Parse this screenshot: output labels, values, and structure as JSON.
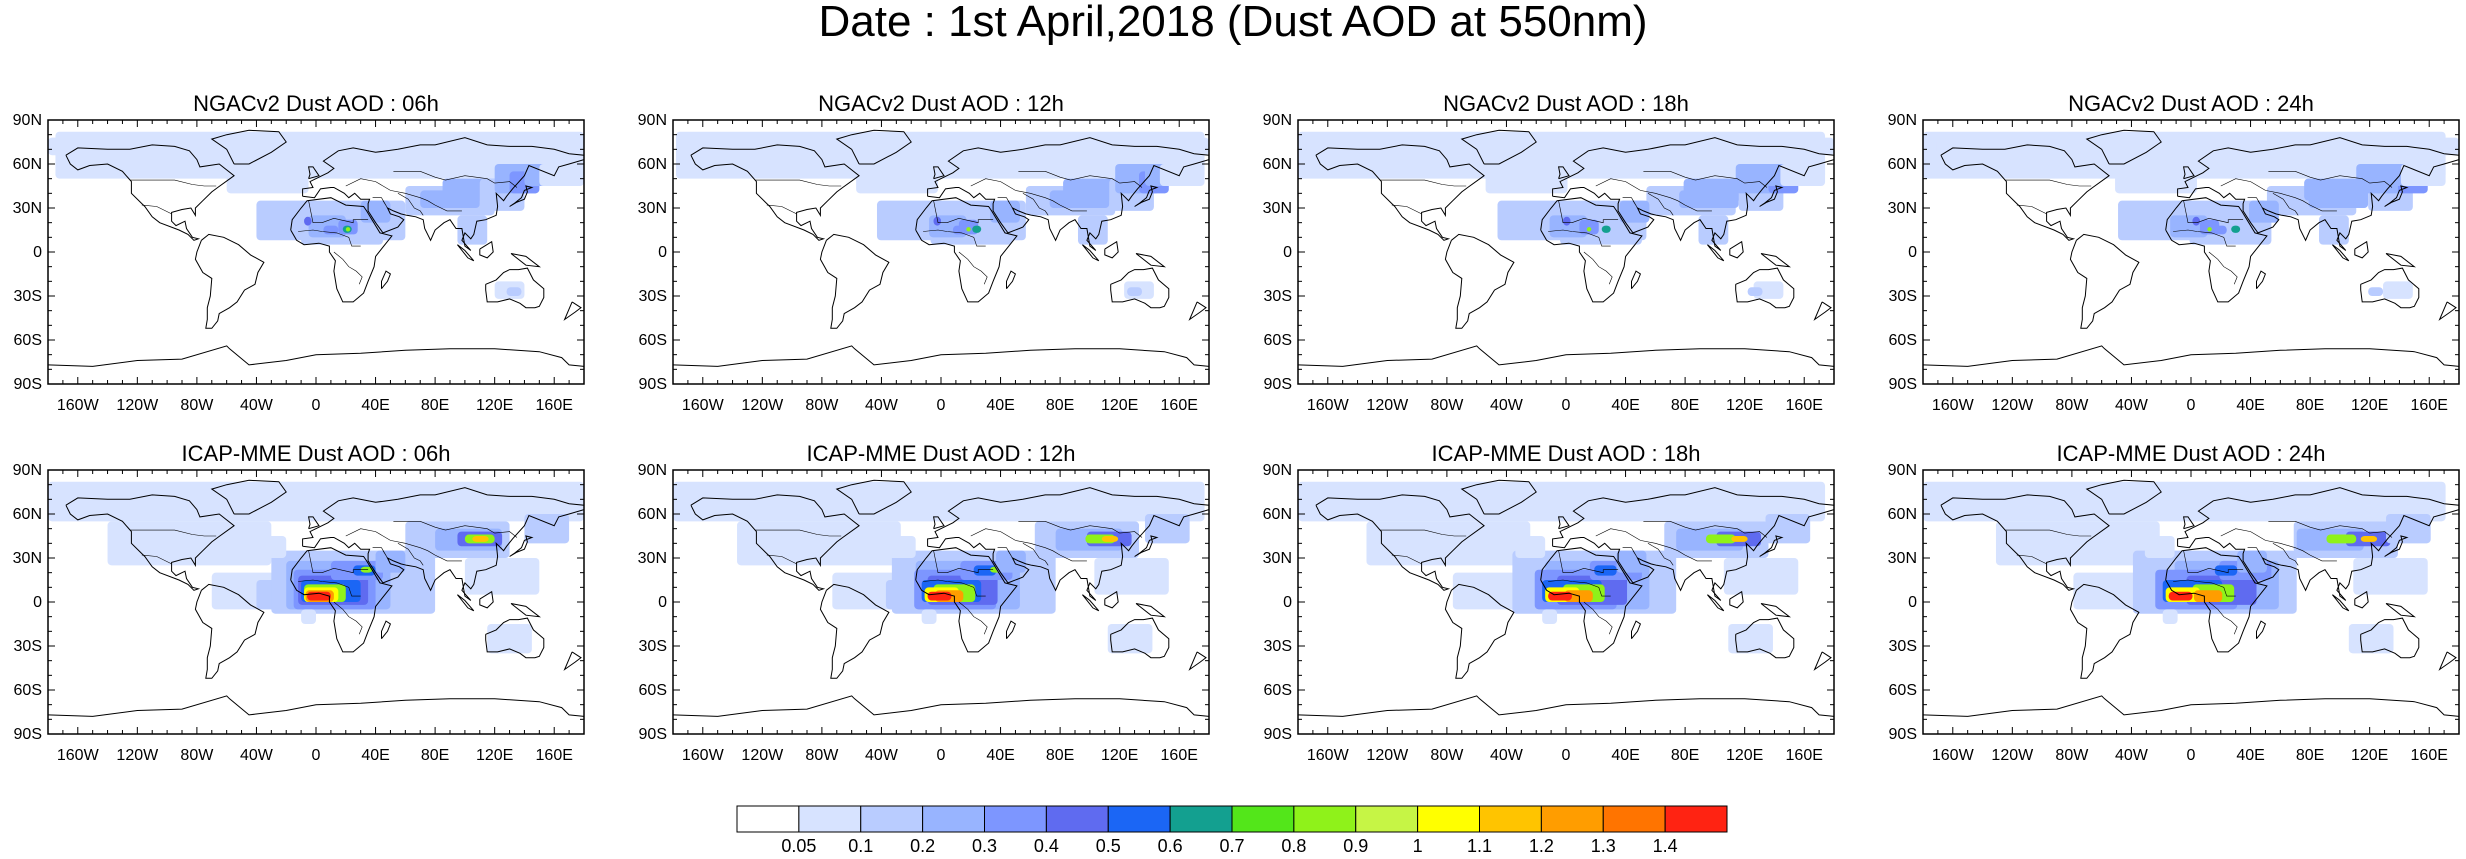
{
  "title": "Date : 1st April,2018 (Dust AOD at 550nm)",
  "panels": [
    {
      "title": "NGACv2 Dust AOD : 06h",
      "model": "NGACv2",
      "hour": "06h"
    },
    {
      "title": "NGACv2 Dust AOD : 12h",
      "model": "NGACv2",
      "hour": "12h"
    },
    {
      "title": "NGACv2 Dust AOD : 18h",
      "model": "NGACv2",
      "hour": "18h"
    },
    {
      "title": "NGACv2 Dust AOD : 24h",
      "model": "NGACv2",
      "hour": "24h"
    },
    {
      "title": "ICAP-MME Dust AOD : 06h",
      "model": "ICAP-MME",
      "hour": "06h"
    },
    {
      "title": "ICAP-MME Dust AOD : 12h",
      "model": "ICAP-MME",
      "hour": "12h"
    },
    {
      "title": "ICAP-MME Dust AOD : 18h",
      "model": "ICAP-MME",
      "hour": "18h"
    },
    {
      "title": "ICAP-MME Dust AOD : 24h",
      "model": "ICAP-MME",
      "hour": "24h"
    }
  ],
  "lat_labels": [
    "90N",
    "60N",
    "30N",
    "0",
    "30S",
    "60S",
    "90S"
  ],
  "lon_labels": [
    "160W",
    "120W",
    "80W",
    "40W",
    "0",
    "40E",
    "80E",
    "120E",
    "160E"
  ],
  "colorbar": {
    "labels": [
      "0.05",
      "0.1",
      "0.2",
      "0.3",
      "0.4",
      "0.5",
      "0.6",
      "0.7",
      "0.8",
      "0.9",
      "1",
      "1.1",
      "1.2",
      "1.3",
      "1.4"
    ],
    "colors": [
      "#ffffff",
      "#d7e3ff",
      "#b9ccff",
      "#98b4ff",
      "#7d96ff",
      "#5f6bf0",
      "#1b66f5",
      "#13a090",
      "#53e61a",
      "#8ff21a",
      "#c6f545",
      "#ffff00",
      "#ffc400",
      "#ff9d00",
      "#ff7400",
      "#ff2312"
    ]
  }
}
